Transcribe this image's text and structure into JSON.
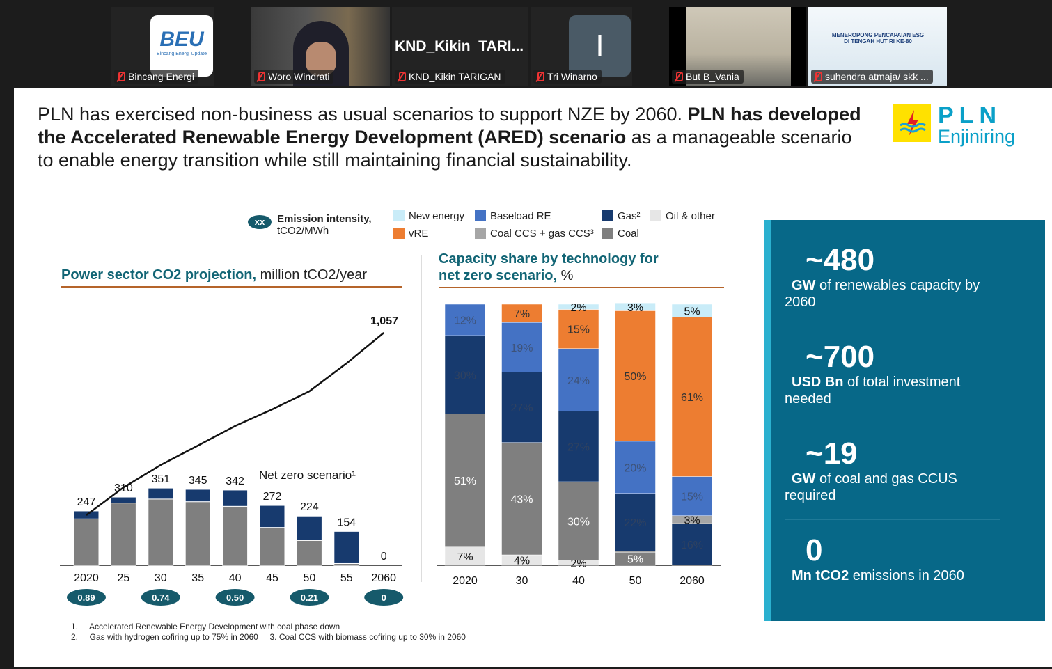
{
  "participants": [
    {
      "name": "Bincang Energi",
      "muted": true,
      "logo_text": "BEU",
      "logo_sub": "Bincang Energi Update"
    },
    {
      "name": "Woro Windrati",
      "muted": true
    },
    {
      "name": "KND_Kikin TARIGAN",
      "muted": true,
      "display": "KND_Kikin  TARI..."
    },
    {
      "name": "Tri Winarno",
      "muted": true,
      "initial": "I"
    },
    {
      "name": "But B_Vania",
      "muted": true
    },
    {
      "name": "suhendra atmaja/ skk ...",
      "muted": true,
      "screen_text": "MENEROPONG PENCAPAIAN ESG DI TENGAH HUT RI KE-80"
    }
  ],
  "slide": {
    "headline_1a": "PLN has exercised non-business as usual scenarios to support NZE by 2060. ",
    "headline_1b": "PLN has developed",
    "headline_2a": "the Accelerated Renewable Energy Development (ARED) scenario",
    "headline_2b": " as a manageable scenario",
    "headline_3": "to enable energy transition while still maintaining financial sustainability.",
    "logo": {
      "name": "PLN",
      "sub": "Enjiniring"
    },
    "emission_legend": {
      "pill": "xx",
      "label_bold": "Emission intensity,",
      "label_unit": "tCO2/MWh"
    },
    "legend": [
      {
        "label": "New energy",
        "color": "#c9ecf8"
      },
      {
        "label": "Baseload RE",
        "color": "#4472c4"
      },
      {
        "label": "Gas²",
        "color": "#173a6e"
      },
      {
        "label": "Oil & other",
        "color": "#e6e6e6"
      },
      {
        "label": "vRE",
        "color": "#ed7d31"
      },
      {
        "label": "Coal CCS + gas CCS³",
        "color": "#a6a6a6"
      },
      {
        "label": "Coal",
        "color": "#7f7f7f"
      }
    ],
    "stats": [
      {
        "value": "~480",
        "unit": "GW",
        "text": " of renewables capacity by 2060"
      },
      {
        "value": "~700",
        "unit": "USD Bn",
        "text": " of total investment needed"
      },
      {
        "value": "~19",
        "unit": "GW",
        "text": " of coal and gas CCUS required"
      },
      {
        "value": "0",
        "unit": "Mn tCO2",
        "text": " emissions in 2060"
      }
    ],
    "footnotes": [
      "1.     Accelerated Renewable Energy Development with coal phase down",
      "2.     Gas with hydrogen cofiring up to 75% in 2060     3. Coal CCS with biomass cofiring up to 30% in 2060"
    ]
  },
  "chart_data": [
    {
      "type": "bar",
      "stacked": true,
      "title_bold": "Power sector CO2 projection,",
      "title_unit": " million tCO2/year",
      "categories": [
        "2020",
        "25",
        "30",
        "35",
        "40",
        "45",
        "50",
        "55",
        "2060"
      ],
      "totals": [
        247,
        310,
        351,
        345,
        342,
        272,
        224,
        154,
        0
      ],
      "series": [
        {
          "name": "Coal",
          "color": "#7f7f7f",
          "values": [
            211,
            283,
            301,
            289,
            268,
            172,
            113,
            8,
            0
          ]
        },
        {
          "name": "Gas²",
          "color": "#173a6e",
          "values": [
            36,
            27,
            50,
            56,
            74,
            100,
            111,
            146,
            0
          ]
        }
      ],
      "line": {
        "values": [
          247,
          354,
          456,
          544,
          633,
          709,
          791,
          918,
          1057
        ],
        "end_label": "1,057"
      },
      "annotation": "Net zero scenario¹",
      "emission_intensity": [
        {
          "category": "2020",
          "value": "0.89"
        },
        {
          "category": "30",
          "value": "0.74"
        },
        {
          "category": "40",
          "value": "0.50"
        },
        {
          "category": "50",
          "value": "0.21"
        },
        {
          "category": "2060",
          "value": "0"
        }
      ],
      "ylim": [
        0,
        1100
      ]
    },
    {
      "type": "bar",
      "stacked": true,
      "percent": true,
      "title_bold": "Capacity share by technology for",
      "title_bold2": "net zero scenario,",
      "title_unit": " %",
      "categories": [
        "2020",
        "30",
        "40",
        "50",
        "2060"
      ],
      "series": [
        {
          "name": "Oil & other",
          "color": "#e6e6e6",
          "values": [
            7,
            4,
            2,
            0,
            0
          ]
        },
        {
          "name": "Coal",
          "color": "#7f7f7f",
          "values": [
            51,
            43,
            30,
            5,
            0
          ]
        },
        {
          "name": "Coal CCS + gas CCS³",
          "color": "#a6a6a6",
          "values": [
            0,
            0,
            0,
            0.5,
            0
          ]
        },
        {
          "name": "Gas²",
          "color": "#173a6e",
          "values": [
            30,
            27,
            27,
            22,
            16
          ]
        },
        {
          "name": "Coal CCS + gas CCS³ (2060)",
          "color": "#a6a6a6",
          "values": [
            0,
            0,
            0,
            0,
            3
          ]
        },
        {
          "name": "Baseload RE",
          "color": "#4472c4",
          "values": [
            12,
            19,
            24,
            20,
            15
          ]
        },
        {
          "name": "vRE",
          "color": "#ed7d31",
          "values": [
            0,
            7,
            15,
            50,
            61
          ]
        },
        {
          "name": "New energy",
          "color": "#c9ecf8",
          "values": [
            0,
            0,
            2,
            3,
            5
          ]
        }
      ],
      "ylim": [
        0,
        100
      ]
    }
  ]
}
